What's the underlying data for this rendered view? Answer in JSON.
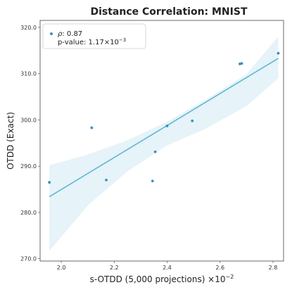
{
  "chart_data": {
    "type": "scatter",
    "title": "Distance Correlation: MNIST",
    "xlabel": "s-OTDD (5,000 projections) ×10",
    "xlabel_exponent": "−2",
    "ylabel": "OTDD (Exact)",
    "xlim": [
      1.92,
      2.84
    ],
    "ylim": [
      269.5,
      321.5
    ],
    "xticks": [
      2.0,
      2.2,
      2.4,
      2.6,
      2.8
    ],
    "xtick_labels": [
      "2.0",
      "2.2",
      "2.4",
      "2.6",
      "2.8"
    ],
    "yticks": [
      270.0,
      280.0,
      290.0,
      300.0,
      310.0,
      320.0
    ],
    "ytick_labels": [
      "270.0",
      "280.0",
      "290.0",
      "300.0",
      "310.0",
      "320.0"
    ],
    "grid": false,
    "legend": {
      "placement": "top-left",
      "rho_symbol": "ρ",
      "rho_value": ": 0.87",
      "pvalue_prefix": "p-value: 1.17×10",
      "pvalue_exponent": "−3"
    },
    "points": [
      {
        "x": 1.955,
        "y": 286.5
      },
      {
        "x": 2.115,
        "y": 298.3
      },
      {
        "x": 2.17,
        "y": 287.0
      },
      {
        "x": 2.345,
        "y": 286.8
      },
      {
        "x": 2.355,
        "y": 293.1
      },
      {
        "x": 2.4,
        "y": 298.7
      },
      {
        "x": 2.495,
        "y": 299.8
      },
      {
        "x": 2.675,
        "y": 312.1
      },
      {
        "x": 2.682,
        "y": 312.2
      },
      {
        "x": 2.82,
        "y": 314.4
      }
    ],
    "regression": {
      "x": [
        1.955,
        2.82
      ],
      "y": [
        283.4,
        313.3
      ]
    },
    "confidence_band": {
      "x": [
        1.955,
        2.1,
        2.25,
        2.4,
        2.55,
        2.7,
        2.82
      ],
      "upper": [
        290.2,
        292.5,
        295.6,
        299.6,
        304.5,
        309.9,
        318.0
      ],
      "lower": [
        271.7,
        281.5,
        288.9,
        294.5,
        298.2,
        303.0,
        309.0
      ]
    },
    "colors": {
      "point": "#3b8fc4",
      "line": "#5fb7d4",
      "band": "#e6f3f8",
      "axis": "#444444"
    }
  }
}
